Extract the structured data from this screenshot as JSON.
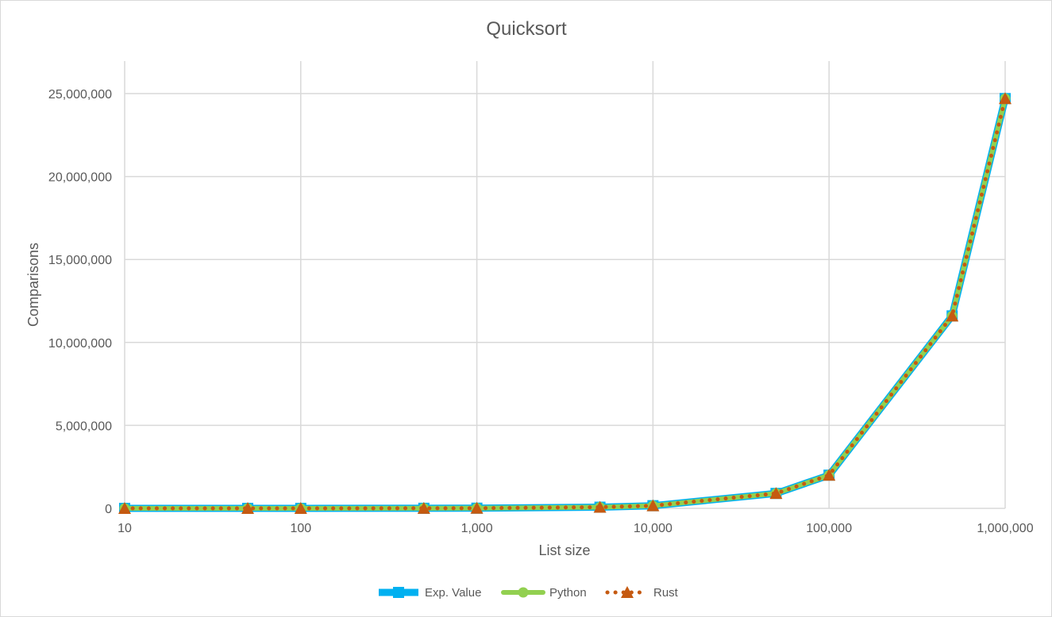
{
  "chart_data": {
    "type": "line",
    "title": "Quicksort",
    "xlabel": "List size",
    "ylabel": "Comparisons",
    "x_scale": "log",
    "x_tick_labels": [
      "10",
      "100",
      "1,000",
      "10,000",
      "100,000",
      "1,000,000"
    ],
    "x_tick_values": [
      10,
      100,
      1000,
      10000,
      100000,
      1000000
    ],
    "y_tick_labels": [
      "0",
      "5,000,000",
      "10,000,000",
      "15,000,000",
      "20,000,000",
      "25,000,000"
    ],
    "y_tick_values": [
      0,
      5000000,
      10000000,
      15000000,
      20000000,
      25000000
    ],
    "xlim": [
      10,
      1000000
    ],
    "ylim": [
      0,
      25000000
    ],
    "grid": true,
    "legend_position": "bottom",
    "x": [
      10,
      50,
      100,
      500,
      1000,
      5000,
      10000,
      50000,
      100000,
      500000,
      1000000
    ],
    "series": [
      {
        "name": "Exp. Value",
        "color": "#00b0f0",
        "marker": "square",
        "values": [
          24,
          250,
          650,
          4800,
          11000,
          70000,
          160000,
          900000,
          2000000,
          11600000,
          24700000
        ]
      },
      {
        "name": "Python",
        "color": "#92d050",
        "marker": "circle",
        "values": [
          24,
          250,
          650,
          4800,
          11000,
          70000,
          160000,
          900000,
          2000000,
          11600000,
          24700000
        ]
      },
      {
        "name": "Rust",
        "color": "#c55a11",
        "marker": "triangle",
        "values": [
          24,
          250,
          650,
          4800,
          11000,
          70000,
          160000,
          900000,
          2000000,
          11600000,
          24700000
        ]
      }
    ]
  }
}
